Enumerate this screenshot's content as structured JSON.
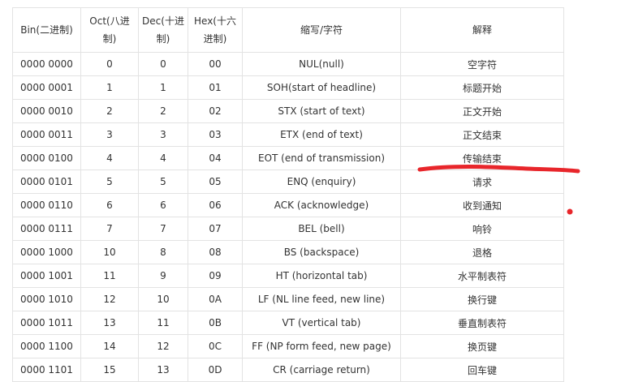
{
  "table": {
    "headers": [
      "Bin(二进制)",
      "Oct(八进制)",
      "Dec(十进制)",
      "Hex(十六进制)",
      "缩写/字符",
      "解释"
    ],
    "rows": [
      [
        "0000 0000",
        "0",
        "0",
        "00",
        "NUL(null)",
        "空字符"
      ],
      [
        "0000 0001",
        "1",
        "1",
        "01",
        "SOH(start of headline)",
        "标题开始"
      ],
      [
        "0000 0010",
        "2",
        "2",
        "02",
        "STX (start of text)",
        "正文开始"
      ],
      [
        "0000 0011",
        "3",
        "3",
        "03",
        "ETX (end of text)",
        "正文结束"
      ],
      [
        "0000 0100",
        "4",
        "4",
        "04",
        "EOT (end of transmission)",
        "传输结束"
      ],
      [
        "0000 0101",
        "5",
        "5",
        "05",
        "ENQ (enquiry)",
        "请求"
      ],
      [
        "0000 0110",
        "6",
        "6",
        "06",
        "ACK (acknowledge)",
        "收到通知"
      ],
      [
        "0000 0111",
        "7",
        "7",
        "07",
        "BEL (bell)",
        "响铃"
      ],
      [
        "0000 1000",
        "10",
        "8",
        "08",
        "BS (backspace)",
        "退格"
      ],
      [
        "0000 1001",
        "11",
        "9",
        "09",
        "HT (horizontal tab)",
        "水平制表符"
      ],
      [
        "0000 1010",
        "12",
        "10",
        "0A",
        "LF (NL line feed, new line)",
        "换行键"
      ],
      [
        "0000 1011",
        "13",
        "11",
        "0B",
        "VT (vertical tab)",
        "垂直制表符"
      ],
      [
        "0000 1100",
        "14",
        "12",
        "0C",
        "FF (NP form feed, new page)",
        "换页键"
      ],
      [
        "0000 1101",
        "15",
        "13",
        "0D",
        "CR (carriage return)",
        "回车键"
      ]
    ]
  },
  "annotation": {
    "color": "#e8262b"
  }
}
